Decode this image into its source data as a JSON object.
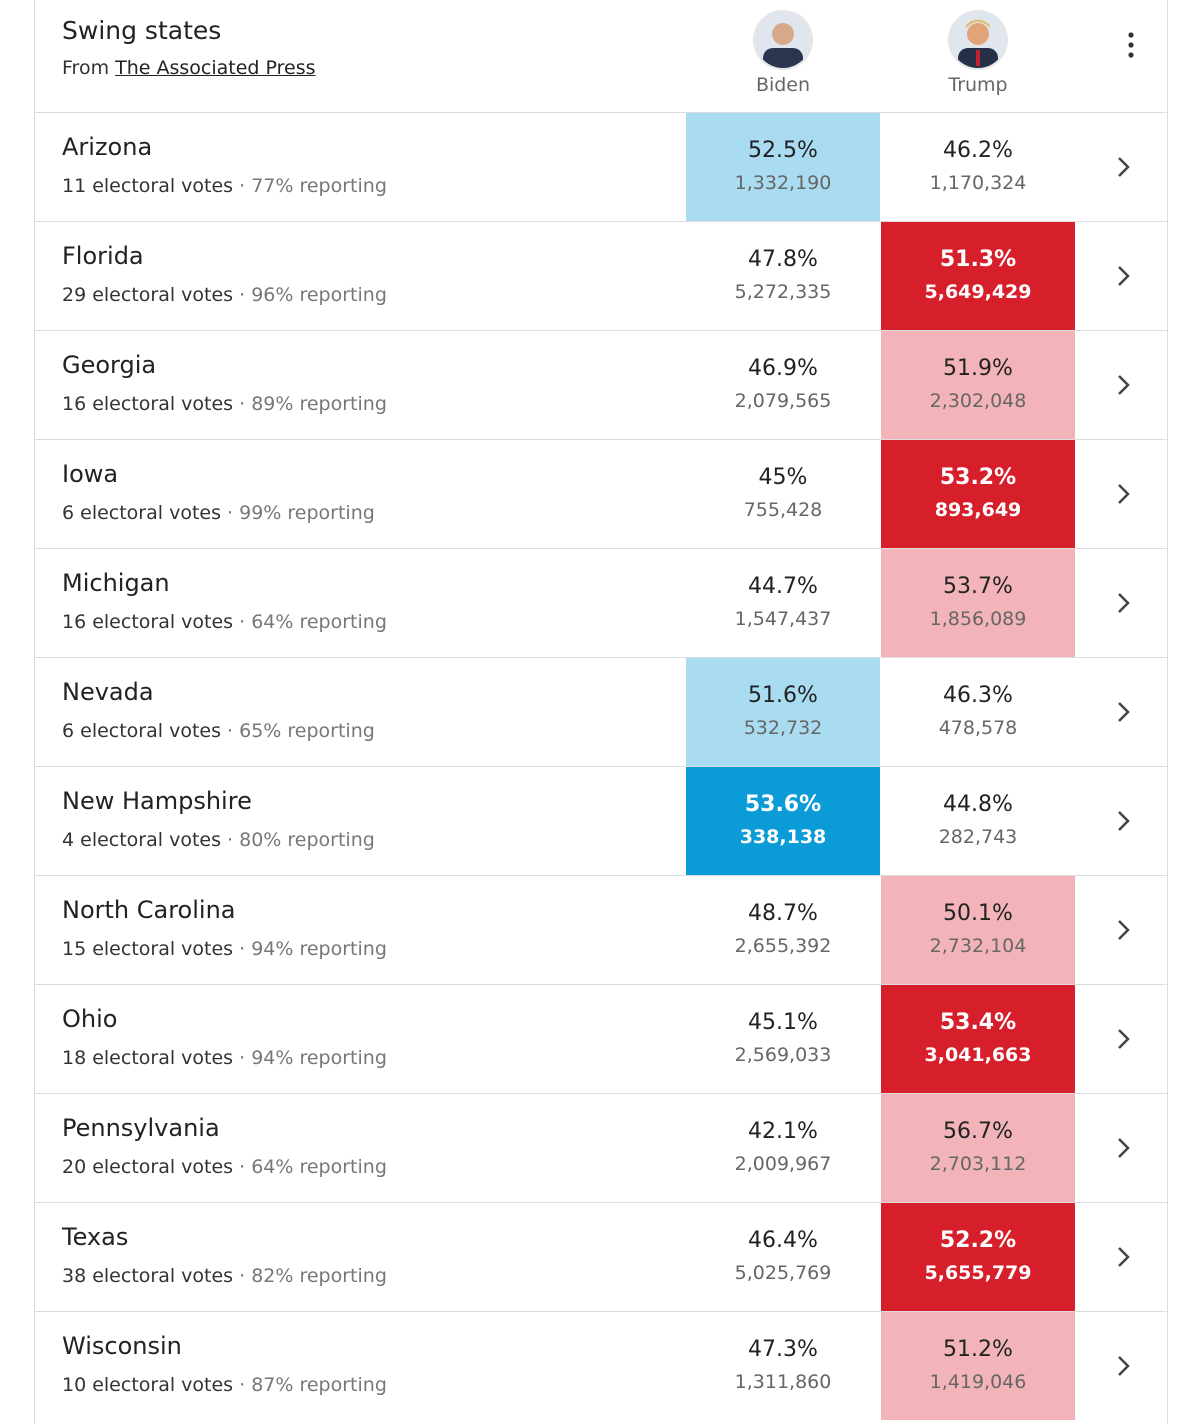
{
  "header": {
    "title": "Swing states",
    "source_prefix": "From",
    "source_link": "The Associated Press",
    "candidates": [
      "Biden",
      "Trump"
    ]
  },
  "highlight_colors": {
    "biden_light": "#a9dcf1",
    "biden_dark": "#0b9bd7",
    "trump_light": "#f2b4b9",
    "trump_dark": "#d61f2b"
  },
  "rows": [
    {
      "state": "Arizona",
      "electoral": "11 electoral votes",
      "reporting": "77% reporting",
      "biden_pct": "52.5%",
      "biden_votes": "1,332,190",
      "trump_pct": "46.2%",
      "trump_votes": "1,170,324",
      "highlight": "biden_light"
    },
    {
      "state": "Florida",
      "electoral": "29 electoral votes",
      "reporting": "96% reporting",
      "biden_pct": "47.8%",
      "biden_votes": "5,272,335",
      "trump_pct": "51.3%",
      "trump_votes": "5,649,429",
      "highlight": "trump_dark"
    },
    {
      "state": "Georgia",
      "electoral": "16 electoral votes",
      "reporting": "89% reporting",
      "biden_pct": "46.9%",
      "biden_votes": "2,079,565",
      "trump_pct": "51.9%",
      "trump_votes": "2,302,048",
      "highlight": "trump_light"
    },
    {
      "state": "Iowa",
      "electoral": "6 electoral votes",
      "reporting": "99% reporting",
      "biden_pct": "45%",
      "biden_votes": "755,428",
      "trump_pct": "53.2%",
      "trump_votes": "893,649",
      "highlight": "trump_dark"
    },
    {
      "state": "Michigan",
      "electoral": "16 electoral votes",
      "reporting": "64% reporting",
      "biden_pct": "44.7%",
      "biden_votes": "1,547,437",
      "trump_pct": "53.7%",
      "trump_votes": "1,856,089",
      "highlight": "trump_light"
    },
    {
      "state": "Nevada",
      "electoral": "6 electoral votes",
      "reporting": "65% reporting",
      "biden_pct": "51.6%",
      "biden_votes": "532,732",
      "trump_pct": "46.3%",
      "trump_votes": "478,578",
      "highlight": "biden_light"
    },
    {
      "state": "New Hampshire",
      "electoral": "4 electoral votes",
      "reporting": "80% reporting",
      "biden_pct": "53.6%",
      "biden_votes": "338,138",
      "trump_pct": "44.8%",
      "trump_votes": "282,743",
      "highlight": "biden_dark"
    },
    {
      "state": "North Carolina",
      "electoral": "15 electoral votes",
      "reporting": "94% reporting",
      "biden_pct": "48.7%",
      "biden_votes": "2,655,392",
      "trump_pct": "50.1%",
      "trump_votes": "2,732,104",
      "highlight": "trump_light"
    },
    {
      "state": "Ohio",
      "electoral": "18 electoral votes",
      "reporting": "94% reporting",
      "biden_pct": "45.1%",
      "biden_votes": "2,569,033",
      "trump_pct": "53.4%",
      "trump_votes": "3,041,663",
      "highlight": "trump_dark"
    },
    {
      "state": "Pennsylvania",
      "electoral": "20 electoral votes",
      "reporting": "64% reporting",
      "biden_pct": "42.1%",
      "biden_votes": "2,009,967",
      "trump_pct": "56.7%",
      "trump_votes": "2,703,112",
      "highlight": "trump_light"
    },
    {
      "state": "Texas",
      "electoral": "38 electoral votes",
      "reporting": "82% reporting",
      "biden_pct": "46.4%",
      "biden_votes": "5,025,769",
      "trump_pct": "52.2%",
      "trump_votes": "5,655,779",
      "highlight": "trump_dark"
    },
    {
      "state": "Wisconsin",
      "electoral": "10 electoral votes",
      "reporting": "87% reporting",
      "biden_pct": "47.3%",
      "biden_votes": "1,311,860",
      "trump_pct": "51.2%",
      "trump_votes": "1,419,046",
      "highlight": "trump_light"
    }
  ]
}
